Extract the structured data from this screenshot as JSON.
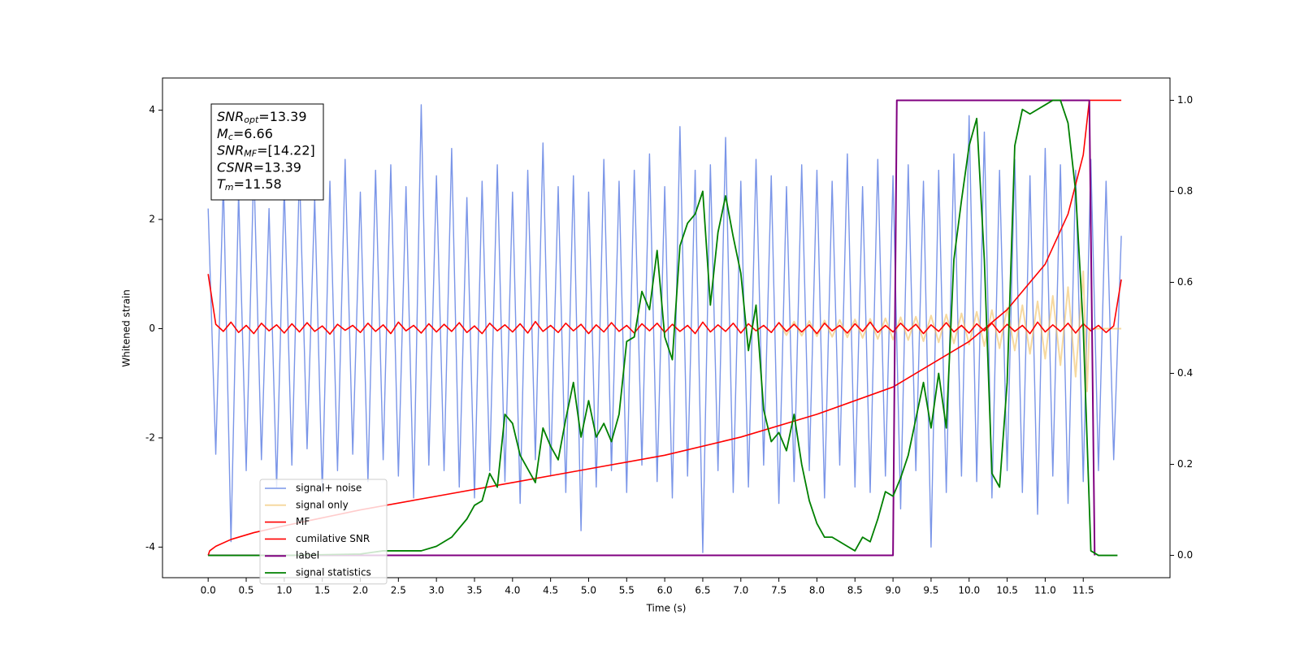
{
  "chart_data": {
    "type": "line",
    "xlabel": "Time (s)",
    "ylabel": "Whitened strain",
    "xlim": [
      -0.6,
      12.64
    ],
    "ylim": [
      -4.56,
      4.59
    ],
    "y2lim": [
      -0.049,
      1.049
    ],
    "xticks": [
      {
        "value": 0,
        "label": "0.0"
      },
      {
        "value": 0.5,
        "label": "0.5"
      },
      {
        "value": 1,
        "label": "1.0"
      },
      {
        "value": 1.5,
        "label": "1.5"
      },
      {
        "value": 2,
        "label": "2.0"
      },
      {
        "value": 2.5,
        "label": "2.5"
      },
      {
        "value": 3,
        "label": "3.0"
      },
      {
        "value": 3.5,
        "label": "3.5"
      },
      {
        "value": 4,
        "label": "4.0"
      },
      {
        "value": 4.5,
        "label": "4.5"
      },
      {
        "value": 5,
        "label": "5.0"
      },
      {
        "value": 5.5,
        "label": "5.5"
      },
      {
        "value": 6,
        "label": "6.0"
      },
      {
        "value": 6.5,
        "label": "6.5"
      },
      {
        "value": 7,
        "label": "7.0"
      },
      {
        "value": 7.5,
        "label": "7.5"
      },
      {
        "value": 8,
        "label": "8.0"
      },
      {
        "value": 8.5,
        "label": "8.5"
      },
      {
        "value": 9,
        "label": "9.0"
      },
      {
        "value": 9.5,
        "label": "9.5"
      },
      {
        "value": 10,
        "label": "10.0"
      },
      {
        "value": 10.5,
        "label": "10.5"
      },
      {
        "value": 11,
        "label": "11.0"
      },
      {
        "value": 11.5,
        "label": "11.5"
      }
    ],
    "yticks": [
      -4,
      -2,
      0,
      2,
      4
    ],
    "y2ticks": [
      {
        "value": 0,
        "label": "0.0"
      },
      {
        "value": 0.2,
        "label": "0.2"
      },
      {
        "value": 0.4,
        "label": "0.4"
      },
      {
        "value": 0.6,
        "label": "0.6"
      },
      {
        "value": 0.8,
        "label": "0.8"
      },
      {
        "value": 1,
        "label": "1.0"
      }
    ],
    "grid": false,
    "legend": "lower left",
    "annotation": [
      {
        "name": "SNR",
        "sub": "opt",
        "text": "=13.39"
      },
      {
        "name": "M",
        "sub": "c",
        "text": "=6.66"
      },
      {
        "name": "SNR",
        "sub": "MF",
        "text": "=[14.22]"
      },
      {
        "name": "CSNR",
        "text": "=13.39"
      },
      {
        "name": "T",
        "sub": "m",
        "text": "=11.58"
      }
    ],
    "x": [
      0,
      0.1,
      0.2,
      0.3,
      0.4,
      0.5,
      0.6,
      0.7,
      0.8,
      0.9,
      1,
      1.1,
      1.2,
      1.3,
      1.4,
      1.5,
      1.6,
      1.7,
      1.8,
      1.9,
      2,
      2.1,
      2.2,
      2.3,
      2.4,
      2.5,
      2.6,
      2.7,
      2.8,
      2.9,
      3,
      3.1,
      3.2,
      3.3,
      3.4,
      3.5,
      3.6,
      3.7,
      3.8,
      3.9,
      4,
      4.1,
      4.2,
      4.3,
      4.4,
      4.5,
      4.6,
      4.7,
      4.8,
      4.9,
      5,
      5.1,
      5.2,
      5.3,
      5.4,
      5.5,
      5.6,
      5.7,
      5.8,
      5.9,
      6,
      6.1,
      6.2,
      6.3,
      6.4,
      6.5,
      6.6,
      6.7,
      6.8,
      6.9,
      7,
      7.1,
      7.2,
      7.3,
      7.4,
      7.5,
      7.6,
      7.7,
      7.8,
      7.9,
      8,
      8.1,
      8.2,
      8.3,
      8.4,
      8.5,
      8.6,
      8.7,
      8.8,
      8.9,
      9,
      9.1,
      9.2,
      9.3,
      9.4,
      9.5,
      9.6,
      9.7,
      9.8,
      9.9,
      10,
      10.1,
      10.2,
      10.3,
      10.4,
      10.5,
      10.6,
      10.7,
      10.8,
      10.9,
      11,
      11.1,
      11.2,
      11.3,
      11.4,
      11.5,
      11.6,
      11.7,
      11.8,
      11.9,
      12
    ],
    "series": [
      {
        "name": "signal+ noise",
        "color": "#7a95e8",
        "width": 1.4,
        "values": [
          2.2,
          -2.3,
          2.7,
          -3.9,
          2.5,
          -2.6,
          3.0,
          -2.4,
          2.2,
          -2.9,
          2.6,
          -2.5,
          2.9,
          -2.2,
          2.4,
          -3.0,
          2.7,
          -2.6,
          3.1,
          -2.3,
          2.5,
          -2.8,
          2.9,
          -2.4,
          3.0,
          -2.7,
          2.6,
          -3.1,
          4.1,
          -2.5,
          2.8,
          -2.6,
          3.3,
          -2.9,
          2.4,
          -3.1,
          2.7,
          -2.6,
          3.0,
          -2.8,
          2.5,
          -3.2,
          2.9,
          -2.4,
          3.4,
          -2.7,
          2.6,
          -3.0,
          2.8,
          -3.7,
          2.5,
          -2.9,
          3.1,
          -2.6,
          2.7,
          -3.0,
          2.9,
          -2.5,
          3.2,
          -2.8,
          2.6,
          -3.1,
          3.7,
          -2.7,
          2.9,
          -4.1,
          3.0,
          -2.6,
          3.5,
          -3.0,
          2.7,
          -2.9,
          3.1,
          -2.5,
          2.8,
          -3.2,
          2.6,
          -2.8,
          3.0,
          -2.6,
          2.9,
          -3.1,
          2.7,
          -2.5,
          3.2,
          -2.9,
          2.6,
          -3.0,
          3.1,
          -2.7,
          2.8,
          -3.3,
          3.0,
          -2.6,
          2.7,
          -4.0,
          2.9,
          -3.0,
          3.2,
          -2.7,
          3.9,
          -2.8,
          3.6,
          -3.1,
          2.9,
          -2.6,
          3.1,
          -3.0,
          2.8,
          -3.4,
          3.3,
          -2.7,
          3.0,
          -3.2,
          2.9,
          -2.8,
          3.1,
          -2.6,
          2.7,
          -2.4,
          1.7
        ]
      },
      {
        "name": "signal only",
        "color": "#f0c060",
        "width": 2,
        "alpha": 0.6,
        "x": [
          7.5,
          7.6,
          7.7,
          7.8,
          7.9,
          8.0,
          8.1,
          8.2,
          8.3,
          8.4,
          8.5,
          8.6,
          8.7,
          8.8,
          8.9,
          9.0,
          9.1,
          9.2,
          9.3,
          9.4,
          9.5,
          9.6,
          9.7,
          9.8,
          9.9,
          10.0,
          10.1,
          10.2,
          10.3,
          10.4,
          10.5,
          10.6,
          10.7,
          10.8,
          10.9,
          11.0,
          11.1,
          11.2,
          11.3,
          11.4,
          11.5,
          11.55,
          11.58,
          12.0
        ],
        "values": [
          0.12,
          -0.12,
          0.13,
          -0.13,
          0.14,
          -0.14,
          0.15,
          -0.15,
          0.16,
          -0.16,
          0.17,
          -0.17,
          0.18,
          -0.19,
          0.19,
          -0.2,
          0.21,
          -0.21,
          0.22,
          -0.23,
          0.24,
          -0.25,
          0.26,
          -0.27,
          0.28,
          -0.29,
          0.31,
          -0.32,
          0.34,
          -0.36,
          0.38,
          -0.4,
          0.43,
          -0.46,
          0.5,
          -0.55,
          0.6,
          -0.67,
          0.76,
          -0.88,
          1.05,
          -1.15,
          0,
          0
        ]
      },
      {
        "name": "MF",
        "color": "#ff0000",
        "width": 1.6,
        "values": [
          1.0,
          0.08,
          -0.05,
          0.12,
          -0.07,
          0.06,
          -0.09,
          0.1,
          -0.04,
          0.07,
          -0.08,
          0.09,
          -0.06,
          0.11,
          -0.05,
          0.05,
          -0.1,
          0.08,
          -0.03,
          0.06,
          -0.07,
          0.1,
          -0.05,
          0.07,
          -0.09,
          0.12,
          -0.04,
          0.06,
          -0.08,
          0.09,
          -0.06,
          0.08,
          -0.05,
          0.11,
          -0.07,
          0.05,
          -0.09,
          0.1,
          -0.04,
          0.07,
          -0.06,
          0.09,
          -0.08,
          0.13,
          -0.05,
          0.06,
          -0.07,
          0.1,
          -0.04,
          0.08,
          -0.09,
          0.07,
          -0.06,
          0.11,
          -0.05,
          0.06,
          -0.08,
          0.09,
          -0.04,
          0.1,
          -0.07,
          0.08,
          -0.05,
          0.06,
          -0.09,
          0.12,
          -0.06,
          0.07,
          -0.05,
          0.1,
          -0.08,
          0.09,
          -0.04,
          0.06,
          -0.07,
          0.11,
          -0.05,
          0.08,
          -0.06,
          0.07,
          -0.09,
          0.1,
          -0.04,
          0.06,
          -0.08,
          0.09,
          -0.05,
          0.12,
          -0.07,
          0.06,
          -0.06,
          0.1,
          -0.04,
          0.08,
          -0.09,
          0.07,
          -0.05,
          0.11,
          -0.06,
          0.06,
          -0.08,
          0.09,
          -0.04,
          0.1,
          -0.07,
          0.08,
          -0.05,
          0.06,
          -0.09,
          0.12,
          -0.06,
          0.07,
          -0.05,
          0.1,
          -0.08,
          0.09,
          -0.04,
          0.06,
          -0.07,
          0.05,
          0.9
        ]
      },
      {
        "name": "cumilative SNR",
        "color": "#ff0000",
        "width": 1.6,
        "axis": "y2",
        "x": [
          0,
          0.02,
          0.1,
          0.3,
          0.6,
          1,
          2,
          3,
          4,
          5,
          6,
          7,
          8,
          9,
          9.5,
          10,
          10.5,
          11,
          11.3,
          11.5,
          11.58,
          12.0
        ],
        "values": [
          0,
          0.01,
          0.02,
          0.035,
          0.05,
          0.065,
          0.1,
          0.13,
          0.16,
          0.19,
          0.22,
          0.26,
          0.31,
          0.37,
          0.42,
          0.47,
          0.54,
          0.64,
          0.75,
          0.88,
          1.0,
          1.0
        ]
      },
      {
        "name": "label",
        "color": "#800080",
        "width": 2,
        "axis": "y2",
        "x": [
          0,
          9.0,
          9.05,
          11.58,
          11.65
        ],
        "values": [
          0,
          0,
          1,
          1,
          0
        ]
      },
      {
        "name": "signal statistics",
        "color": "#008000",
        "width": 1.8,
        "axis": "y2",
        "x": [
          0,
          1,
          2,
          2.3,
          2.8,
          3.0,
          3.2,
          3.4,
          3.5,
          3.6,
          3.7,
          3.8,
          3.9,
          4.0,
          4.1,
          4.2,
          4.3,
          4.4,
          4.5,
          4.6,
          4.7,
          4.8,
          4.9,
          5.0,
          5.1,
          5.2,
          5.3,
          5.4,
          5.5,
          5.6,
          5.7,
          5.8,
          5.9,
          6.0,
          6.1,
          6.2,
          6.3,
          6.4,
          6.5,
          6.6,
          6.7,
          6.8,
          6.9,
          7.0,
          7.1,
          7.2,
          7.3,
          7.4,
          7.5,
          7.6,
          7.7,
          7.8,
          7.9,
          8.0,
          8.1,
          8.2,
          8.3,
          8.4,
          8.5,
          8.6,
          8.7,
          8.8,
          8.9,
          9.0,
          9.1,
          9.2,
          9.3,
          9.4,
          9.5,
          9.6,
          9.7,
          9.8,
          9.9,
          10.0,
          10.1,
          10.2,
          10.3,
          10.4,
          10.5,
          10.6,
          10.7,
          10.8,
          10.9,
          11.0,
          11.1,
          11.2,
          11.3,
          11.4,
          11.5,
          11.6,
          11.7,
          11.95
        ],
        "values": [
          0,
          0,
          0.003,
          0.01,
          0.01,
          0.02,
          0.04,
          0.08,
          0.11,
          0.12,
          0.18,
          0.15,
          0.31,
          0.29,
          0.22,
          0.19,
          0.16,
          0.28,
          0.24,
          0.21,
          0.3,
          0.38,
          0.26,
          0.34,
          0.26,
          0.29,
          0.25,
          0.31,
          0.47,
          0.48,
          0.58,
          0.54,
          0.67,
          0.48,
          0.43,
          0.68,
          0.73,
          0.75,
          0.8,
          0.55,
          0.71,
          0.79,
          0.7,
          0.62,
          0.45,
          0.55,
          0.32,
          0.25,
          0.27,
          0.23,
          0.31,
          0.2,
          0.12,
          0.07,
          0.04,
          0.04,
          0.03,
          0.02,
          0.01,
          0.04,
          0.03,
          0.08,
          0.14,
          0.13,
          0.17,
          0.22,
          0.3,
          0.38,
          0.28,
          0.4,
          0.28,
          0.65,
          0.78,
          0.9,
          0.96,
          0.65,
          0.18,
          0.15,
          0.38,
          0.9,
          0.98,
          0.97,
          0.98,
          0.99,
          1.0,
          1.0,
          0.95,
          0.8,
          0.5,
          0.01,
          0,
          0
        ]
      }
    ]
  }
}
